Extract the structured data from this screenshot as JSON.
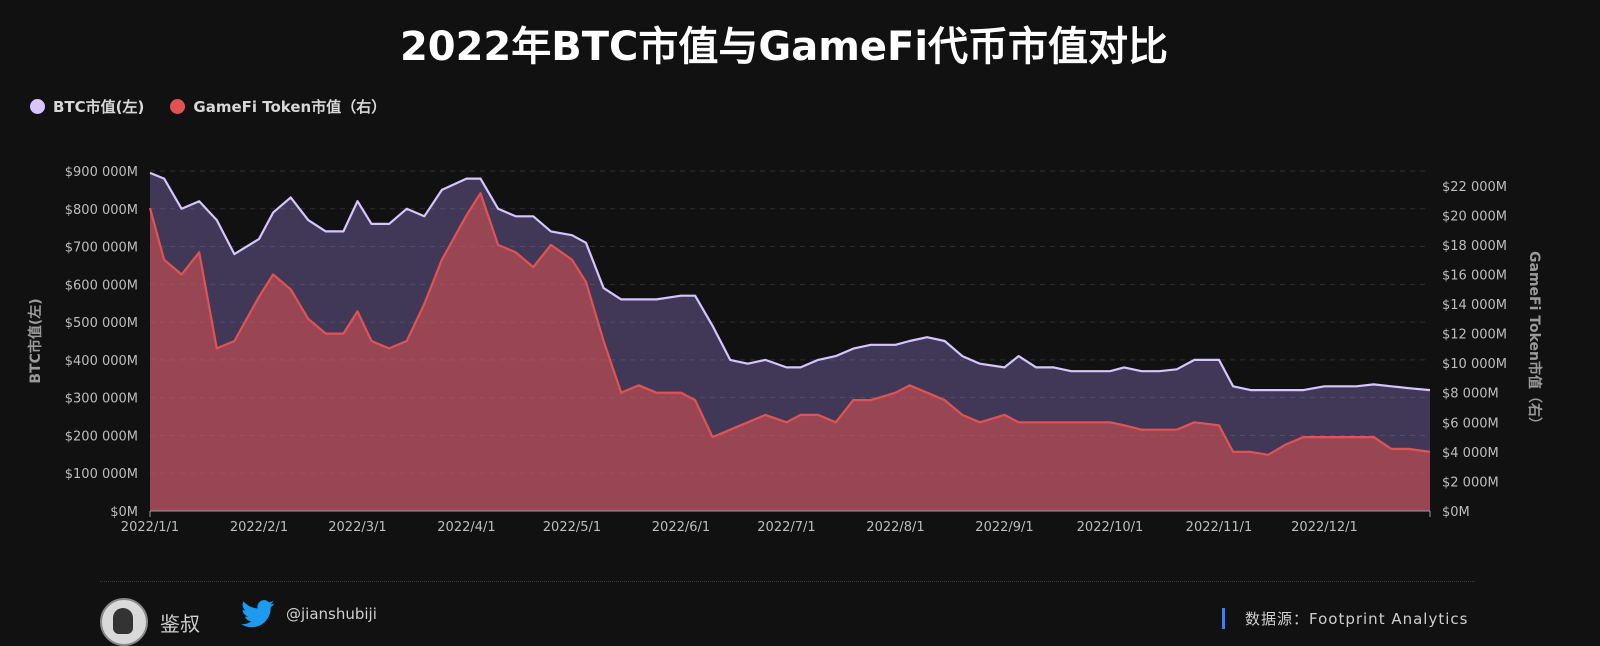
{
  "chart_data": {
    "type": "area",
    "title": "2022年BTC市值与GameFi代币市值对比",
    "legend": [
      {
        "label": "BTC市值(左)",
        "color": "#d7c5ff"
      },
      {
        "label": "GameFi Token市值（右）",
        "color": "#e15252"
      }
    ],
    "legend_position": "top-left",
    "grid": true,
    "x_ticks": [
      "2022/1/1",
      "2022/2/1",
      "2022/3/1",
      "2022/4/1",
      "2022/5/1",
      "2022/6/1",
      "2022/7/1",
      "2022/8/1",
      "2022/9/1",
      "2022/10/1",
      "2022/11/1",
      "2022/12/1"
    ],
    "y_left": {
      "label": "BTC市值(左)",
      "range": [
        0,
        900000
      ],
      "ticks": [
        "$0M",
        "$100 000M",
        "$200 000M",
        "$300 000M",
        "$400 000M",
        "$500 000M",
        "$600 000M",
        "$700 000M",
        "$800 000M",
        "$900 000M"
      ]
    },
    "y_right": {
      "label": "GameFi Token市值（右）",
      "range": [
        0,
        23000
      ],
      "ticks": [
        "$0M",
        "$2 000M",
        "$4 000M",
        "$6 000M",
        "$8 000M",
        "$10 000M",
        "$12 000M",
        "$14 000M",
        "$16 000M",
        "$18 000M",
        "$20 000M",
        "$22 000M"
      ]
    },
    "series": [
      {
        "name": "BTC市值(左)",
        "axis": "left",
        "x": [
          "2022/1/1",
          "2022/1/5",
          "2022/1/10",
          "2022/1/15",
          "2022/1/20",
          "2022/1/25",
          "2022/2/1",
          "2022/2/5",
          "2022/2/10",
          "2022/2/15",
          "2022/2/20",
          "2022/2/25",
          "2022/3/1",
          "2022/3/5",
          "2022/3/10",
          "2022/3/15",
          "2022/3/20",
          "2022/3/25",
          "2022/4/1",
          "2022/4/5",
          "2022/4/10",
          "2022/4/15",
          "2022/4/20",
          "2022/4/25",
          "2022/5/1",
          "2022/5/5",
          "2022/5/10",
          "2022/5/15",
          "2022/5/20",
          "2022/5/25",
          "2022/6/1",
          "2022/6/5",
          "2022/6/10",
          "2022/6/15",
          "2022/6/20",
          "2022/6/25",
          "2022/7/1",
          "2022/7/5",
          "2022/7/10",
          "2022/7/15",
          "2022/7/20",
          "2022/7/25",
          "2022/8/1",
          "2022/8/5",
          "2022/8/10",
          "2022/8/15",
          "2022/8/20",
          "2022/8/25",
          "2022/9/1",
          "2022/9/5",
          "2022/9/10",
          "2022/9/15",
          "2022/9/20",
          "2022/9/25",
          "2022/10/1",
          "2022/10/5",
          "2022/10/10",
          "2022/10/15",
          "2022/10/20",
          "2022/10/25",
          "2022/11/1",
          "2022/11/5",
          "2022/11/10",
          "2022/11/15",
          "2022/11/20",
          "2022/11/25",
          "2022/12/1",
          "2022/12/5",
          "2022/12/10",
          "2022/12/15",
          "2022/12/20",
          "2022/12/25",
          "2022/12/31"
        ],
        "values": [
          895000,
          880000,
          800000,
          820000,
          770000,
          680000,
          720000,
          790000,
          830000,
          770000,
          740000,
          740000,
          820000,
          760000,
          760000,
          800000,
          780000,
          850000,
          880000,
          880000,
          800000,
          780000,
          780000,
          740000,
          730000,
          710000,
          590000,
          560000,
          560000,
          560000,
          570000,
          570000,
          490000,
          400000,
          390000,
          400000,
          380000,
          380000,
          400000,
          410000,
          430000,
          440000,
          440000,
          450000,
          460000,
          450000,
          410000,
          390000,
          380000,
          410000,
          380000,
          380000,
          370000,
          370000,
          370000,
          380000,
          370000,
          370000,
          375000,
          400000,
          400000,
          330000,
          320000,
          320000,
          320000,
          320000,
          330000,
          330000,
          330000,
          335000,
          330000,
          325000,
          320000
        ]
      },
      {
        "name": "GameFi Token市值（右）",
        "axis": "right",
        "x": [
          "2022/1/1",
          "2022/1/5",
          "2022/1/10",
          "2022/1/15",
          "2022/1/20",
          "2022/1/25",
          "2022/2/1",
          "2022/2/5",
          "2022/2/10",
          "2022/2/15",
          "2022/2/20",
          "2022/2/25",
          "2022/3/1",
          "2022/3/5",
          "2022/3/10",
          "2022/3/15",
          "2022/3/20",
          "2022/3/25",
          "2022/4/1",
          "2022/4/5",
          "2022/4/10",
          "2022/4/15",
          "2022/4/20",
          "2022/4/25",
          "2022/5/1",
          "2022/5/5",
          "2022/5/10",
          "2022/5/15",
          "2022/5/20",
          "2022/5/25",
          "2022/6/1",
          "2022/6/5",
          "2022/6/10",
          "2022/6/15",
          "2022/6/20",
          "2022/6/25",
          "2022/7/1",
          "2022/7/5",
          "2022/7/10",
          "2022/7/15",
          "2022/7/20",
          "2022/7/25",
          "2022/8/1",
          "2022/8/5",
          "2022/8/10",
          "2022/8/15",
          "2022/8/20",
          "2022/8/25",
          "2022/9/1",
          "2022/9/5",
          "2022/9/10",
          "2022/9/15",
          "2022/9/20",
          "2022/9/25",
          "2022/10/1",
          "2022/10/5",
          "2022/10/10",
          "2022/10/15",
          "2022/10/20",
          "2022/10/25",
          "2022/11/1",
          "2022/11/5",
          "2022/11/10",
          "2022/11/15",
          "2022/11/20",
          "2022/11/25",
          "2022/12/1",
          "2022/12/5",
          "2022/12/10",
          "2022/12/15",
          "2022/12/20",
          "2022/12/25",
          "2022/12/31"
        ],
        "values": [
          20500,
          17000,
          16000,
          17500,
          11000,
          11500,
          14500,
          16000,
          15000,
          13000,
          12000,
          12000,
          13500,
          11500,
          11000,
          11500,
          14000,
          17000,
          20000,
          21500,
          18000,
          17500,
          16500,
          18000,
          17000,
          15500,
          11500,
          8000,
          8500,
          8000,
          8000,
          7500,
          5000,
          5500,
          6000,
          6500,
          6000,
          6500,
          6500,
          6000,
          7500,
          7500,
          8000,
          8500,
          8000,
          7500,
          6500,
          6000,
          6500,
          6000,
          6000,
          6000,
          6000,
          6000,
          6000,
          5800,
          5500,
          5500,
          5500,
          6000,
          5800,
          4000,
          4000,
          3800,
          4500,
          5000,
          5000,
          5000,
          5000,
          5000,
          4200,
          4200,
          4000
        ]
      }
    ]
  },
  "footer": {
    "author": "鉴叔",
    "twitter": "@jianshubiji",
    "source": "数据源：Footprint  Analytics"
  }
}
